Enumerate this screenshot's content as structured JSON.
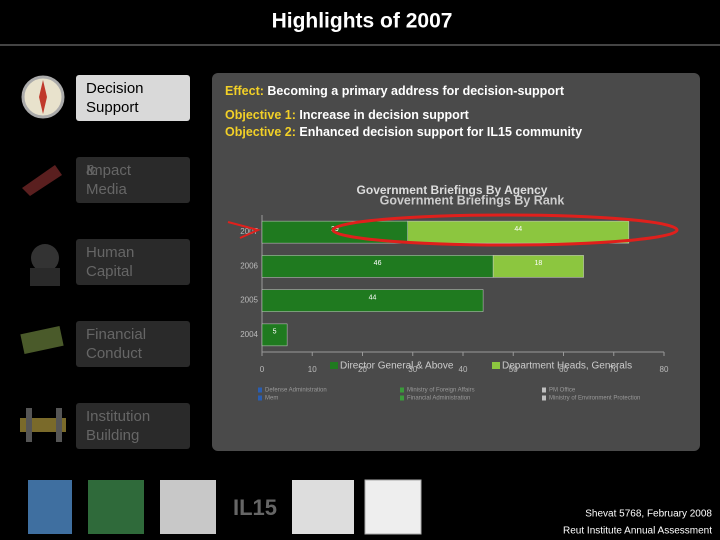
{
  "header": {
    "title": "Highlights of 2007"
  },
  "sidebar": [
    {
      "label": "Decision Support",
      "active": true
    },
    {
      "label": "Impact & Media",
      "active": false
    },
    {
      "label": "Human Capital",
      "active": false
    },
    {
      "label": "Financial Conduct",
      "active": false
    },
    {
      "label": "Institution Building",
      "active": false
    }
  ],
  "content": {
    "effect": {
      "label": "Effect:",
      "text": "Becoming a primary address for decision-support"
    },
    "objectives": [
      {
        "label": "Objective 1:",
        "text": "Increase in decision support"
      },
      {
        "label": "Objective 2:",
        "text": "Enhanced decision support for IL15 community"
      }
    ]
  },
  "chart_data": {
    "type": "bar",
    "orientation": "horizontal",
    "stacked": true,
    "title": "Government Briefings By Rank",
    "subtitle": "Government Briefings By Agency",
    "categories": [
      "2007",
      "2006",
      "2005",
      "2004"
    ],
    "series": [
      {
        "name": "Director General & Above",
        "color": "#1f7a1f",
        "values": [
          29,
          46,
          44,
          5
        ]
      },
      {
        "name": "Department Heads, Generals",
        "color": "#8cc63f",
        "values": [
          44,
          18,
          null,
          null
        ]
      }
    ],
    "xlim": [
      0,
      80
    ],
    "xticks": [
      0,
      10,
      20,
      30,
      40,
      50,
      60,
      70,
      80
    ],
    "agency_legend": [
      "Defense Administration",
      "Ministry of Foreign Affairs",
      "PM Office",
      "Mem",
      "Financial Administration",
      "Ministry of Environment Protection"
    ]
  },
  "footer": {
    "date": "Shevat 5768, February 2008",
    "org": "Reut Institute Annual Assessment",
    "logo": "IL15"
  }
}
